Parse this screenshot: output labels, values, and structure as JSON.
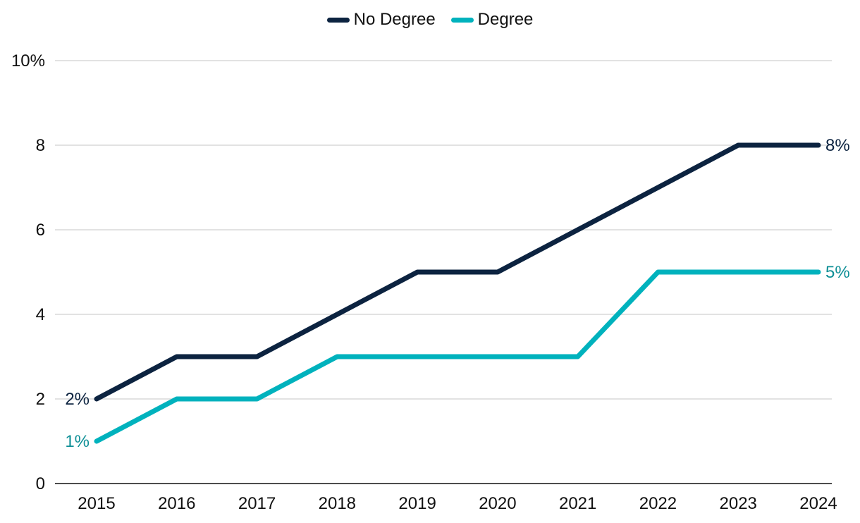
{
  "chart_data": {
    "type": "line",
    "categories": [
      "2015",
      "2016",
      "2017",
      "2018",
      "2019",
      "2020",
      "2021",
      "2022",
      "2023",
      "2024"
    ],
    "series": [
      {
        "name": "No Degree",
        "color": "#0c2340",
        "values": [
          2,
          3,
          3,
          4,
          5,
          5,
          6,
          7,
          8,
          8
        ]
      },
      {
        "name": "Degree",
        "color": "#00b2bd",
        "values": [
          1,
          2,
          2,
          3,
          3,
          3,
          3,
          5,
          5,
          5
        ]
      }
    ],
    "ylim": [
      0,
      10
    ],
    "yticks": [
      {
        "value": 0,
        "label": "0"
      },
      {
        "value": 2,
        "label": "2"
      },
      {
        "value": 4,
        "label": "4"
      },
      {
        "value": 6,
        "label": "6"
      },
      {
        "value": 8,
        "label": "8"
      },
      {
        "value": 10,
        "label": "10%"
      }
    ],
    "data_labels": [
      {
        "series": 0,
        "index": 0,
        "text": "2%",
        "color": "#0c2340",
        "side": "left"
      },
      {
        "series": 1,
        "index": 0,
        "text": "1%",
        "color": "#0e8f96",
        "side": "left"
      },
      {
        "series": 0,
        "index": 9,
        "text": "8%",
        "color": "#0c2340",
        "side": "right"
      },
      {
        "series": 1,
        "index": 9,
        "text": "5%",
        "color": "#0e8f96",
        "side": "right"
      }
    ],
    "grid": true,
    "legend": "top-center",
    "gridColor": "#d9d9d9",
    "axisColor": "#111111"
  }
}
